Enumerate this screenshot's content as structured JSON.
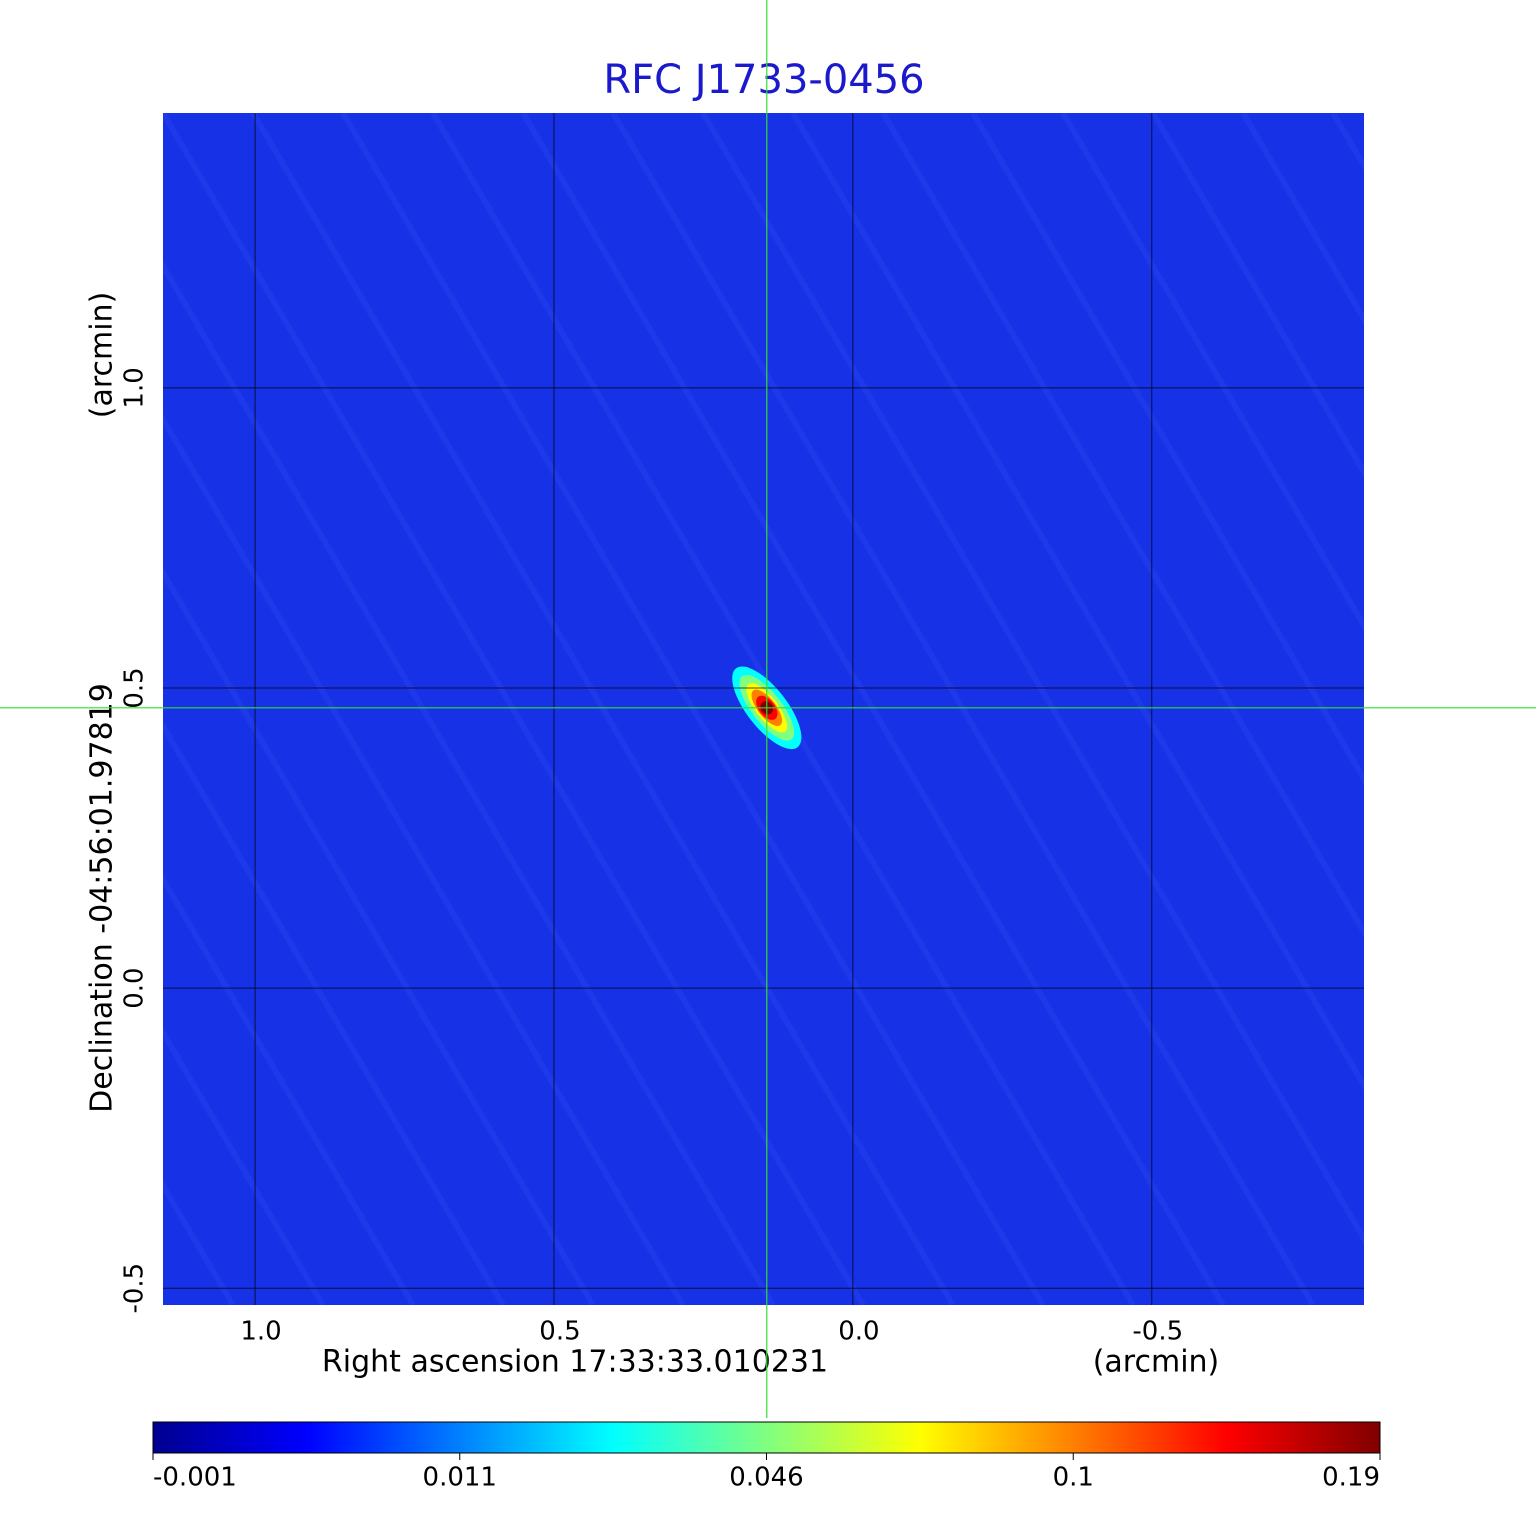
{
  "chart_data": {
    "type": "image",
    "title": "RFC J1733-0456",
    "x_label": "Right ascension  17:33:33.010231",
    "x_unit": "(arcmin)",
    "y_label": "Declination  -04:56:01.97819",
    "y_unit": "(arcmin)",
    "xlim": [
      1.154,
      -0.855
    ],
    "ylim": [
      -0.528,
      1.458
    ],
    "xticks": [
      {
        "value": 1.0,
        "label": "1.0"
      },
      0.5,
      {
        "value": 0.0,
        "label": "0.0"
      },
      -0.5
    ],
    "yticks": [
      -0.5,
      {
        "value": 0.0,
        "label": "0.0"
      },
      0.5,
      {
        "value": 1.0,
        "label": "1.0"
      }
    ],
    "grid": true,
    "background": "#1631e6",
    "source": {
      "x": 0.144,
      "y": 0.467
    },
    "crosshair": {
      "x": 0.144,
      "y": 0.467,
      "color": "#33dd33"
    },
    "colormap": [
      "#00008f",
      "#0000ff",
      "#0080ff",
      "#00ffff",
      "#80ff80",
      "#ffff00",
      "#ff8000",
      "#ff0000",
      "#800000"
    ],
    "colorbar_ticks": [
      -0.001,
      0.011,
      0.046,
      0.1,
      0.19
    ]
  }
}
